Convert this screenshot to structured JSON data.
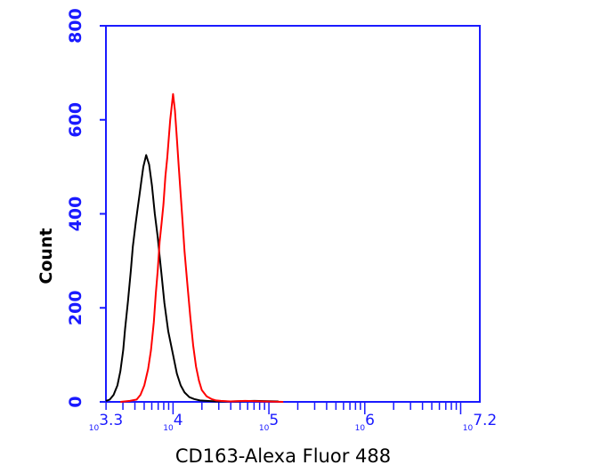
{
  "chart_data": {
    "type": "line",
    "xlabel": "CD163-Alexa Fluor 488",
    "ylabel": "Count",
    "xscale": "log10",
    "xlim": [
      3.3,
      7.2
    ],
    "ylim": [
      0,
      800
    ],
    "yticks": [
      {
        "value": 0,
        "label": "0"
      },
      {
        "value": 200,
        "label": "200"
      },
      {
        "value": 400,
        "label": "400"
      },
      {
        "value": 600,
        "label": "600"
      },
      {
        "value": 800,
        "label": "800"
      }
    ],
    "xticks": [
      {
        "value": 3.3,
        "base": "10",
        "exp": "3.3"
      },
      {
        "value": 4,
        "base": "10",
        "exp": "4"
      },
      {
        "value": 5,
        "base": "10",
        "exp": "5"
      },
      {
        "value": 6,
        "base": "10",
        "exp": "6"
      },
      {
        "value": 7.2,
        "base": "10",
        "exp": "7.2"
      }
    ],
    "grid": false,
    "colors": {
      "axis": "#1a1aff"
    },
    "series": [
      {
        "color": "#000000",
        "x": [
          3.3,
          3.34,
          3.38,
          3.42,
          3.45,
          3.48,
          3.5,
          3.53,
          3.56,
          3.58,
          3.61,
          3.63,
          3.65,
          3.67,
          3.69,
          3.72,
          3.75,
          3.78,
          3.81,
          3.84,
          3.86,
          3.88,
          3.91,
          3.95,
          4.0,
          4.04,
          4.08,
          4.12,
          4.17,
          4.22,
          4.28,
          4.35,
          4.45,
          4.6,
          4.85,
          5.1
        ],
        "y": [
          2,
          5,
          15,
          35,
          65,
          110,
          155,
          215,
          280,
          330,
          380,
          410,
          440,
          470,
          500,
          525,
          505,
          460,
          400,
          350,
          310,
          270,
          210,
          150,
          100,
          60,
          35,
          20,
          10,
          6,
          3,
          2,
          1,
          1,
          2,
          1
        ]
      },
      {
        "color": "#ff0000",
        "x": [
          3.45,
          3.55,
          3.62,
          3.66,
          3.7,
          3.74,
          3.77,
          3.8,
          3.82,
          3.84,
          3.86,
          3.88,
          3.9,
          3.92,
          3.94,
          3.97,
          4.0,
          4.02,
          4.04,
          4.06,
          4.08,
          4.1,
          4.12,
          4.15,
          4.18,
          4.21,
          4.24,
          4.27,
          4.3,
          4.35,
          4.4,
          4.45,
          4.5,
          4.6,
          4.75,
          4.95,
          5.15
        ],
        "y": [
          0,
          2,
          5,
          15,
          35,
          70,
          110,
          170,
          230,
          280,
          340,
          380,
          420,
          480,
          520,
          600,
          655,
          620,
          560,
          500,
          440,
          380,
          320,
          250,
          180,
          120,
          75,
          45,
          25,
          12,
          6,
          3,
          2,
          1,
          2,
          1,
          0
        ]
      }
    ]
  }
}
